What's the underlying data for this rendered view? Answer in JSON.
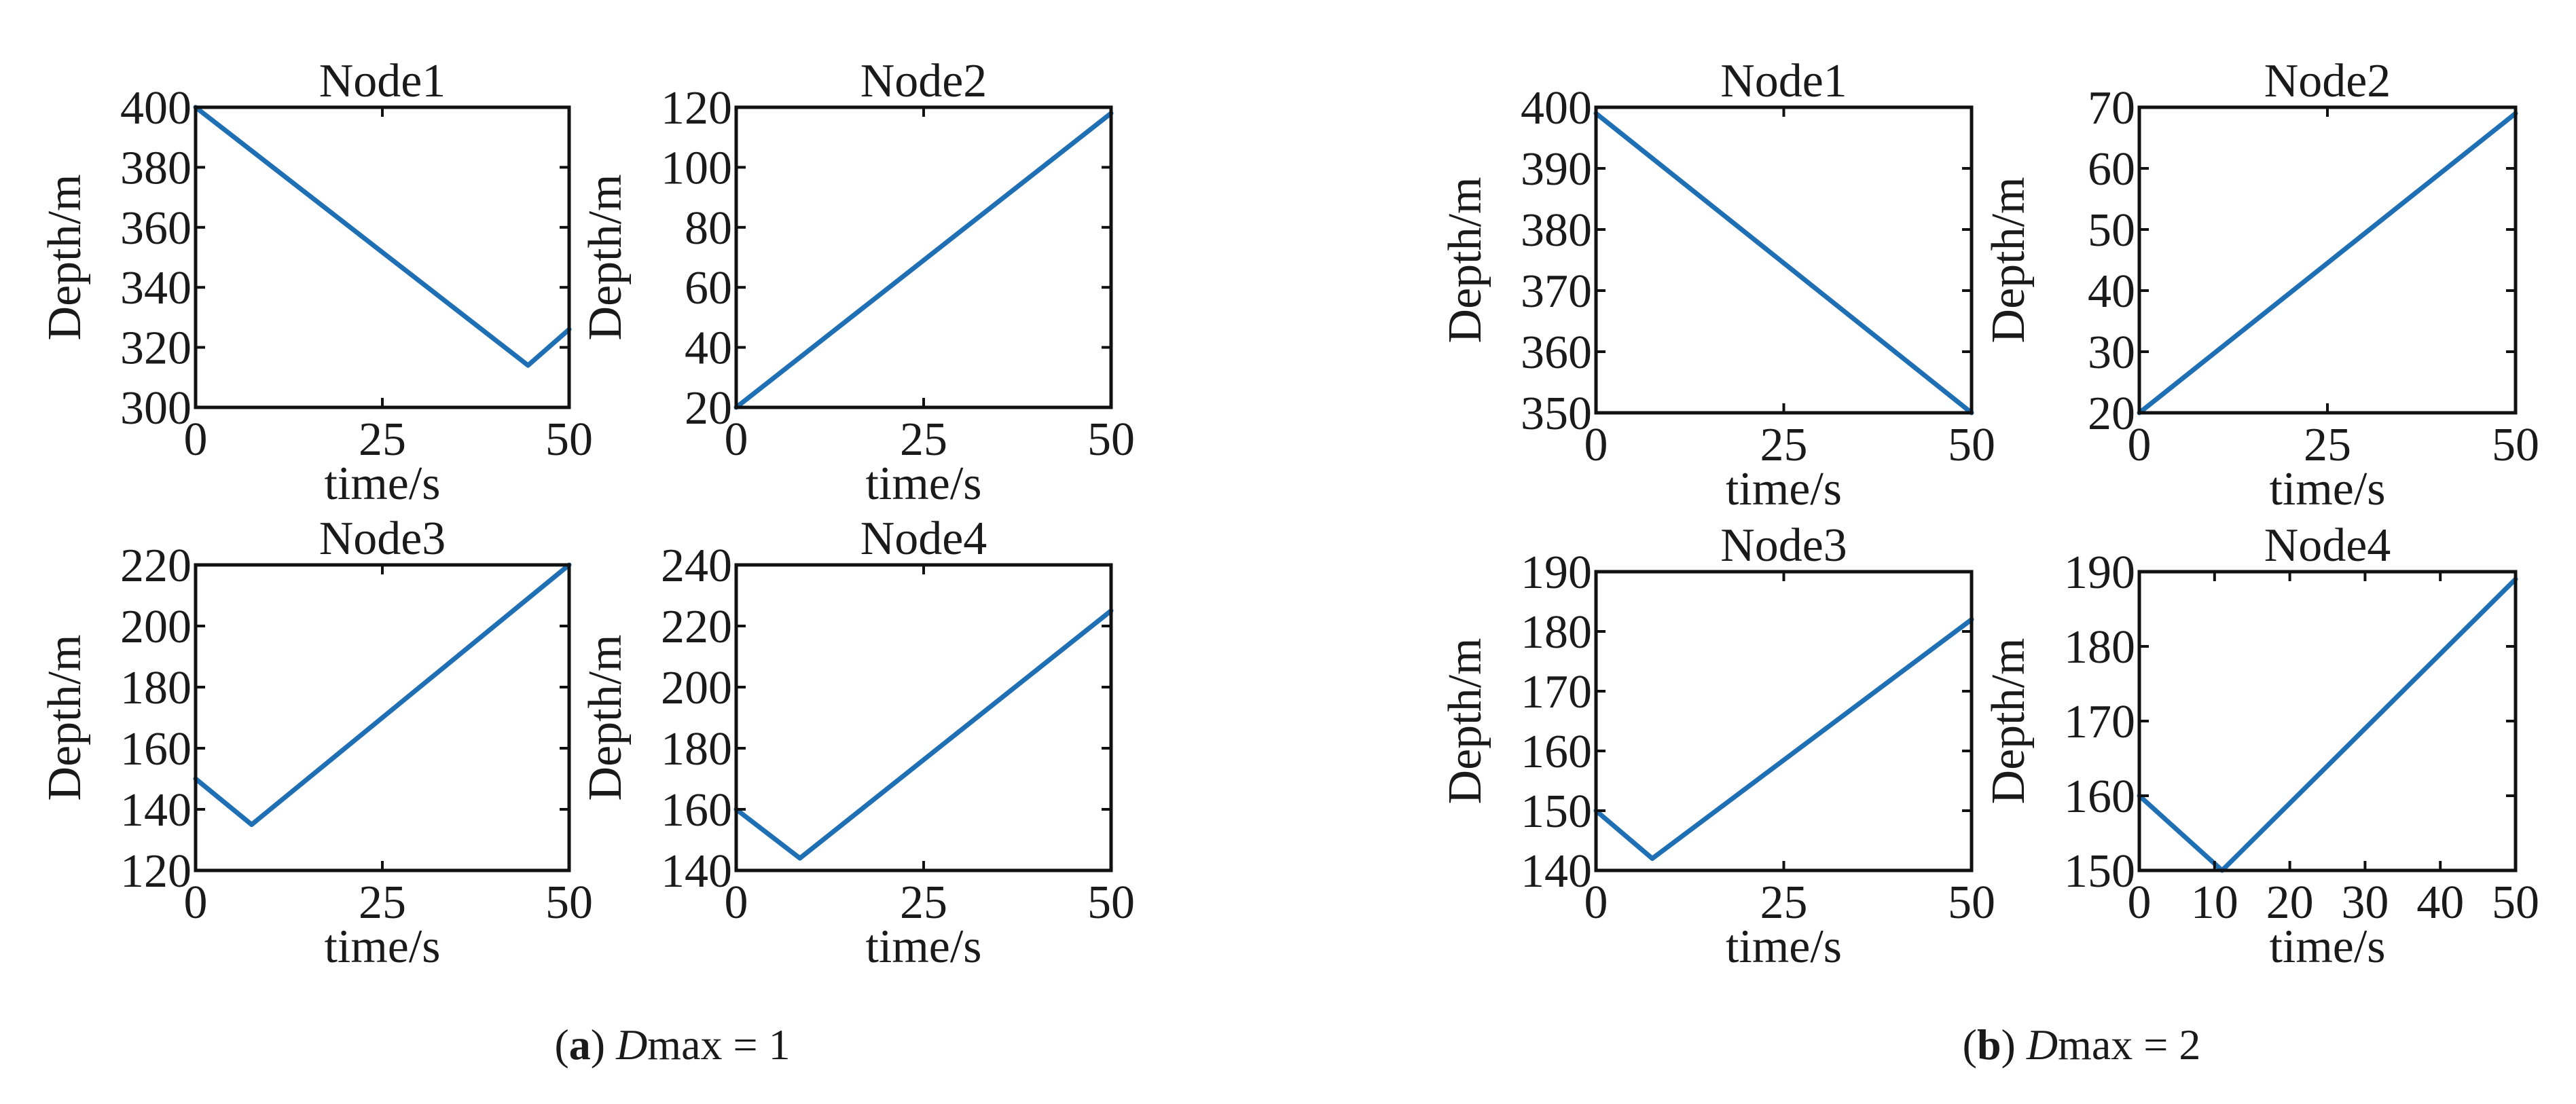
{
  "figure": {
    "captions": [
      {
        "letter": "a",
        "var": "D",
        "rest": "max = 1"
      },
      {
        "letter": "b",
        "var": "D",
        "rest": "max = 2"
      }
    ]
  },
  "chart_data": [
    {
      "type": "line",
      "panel": "a",
      "title": "Node1",
      "xlabel": "time/s",
      "ylabel": "Depth/m",
      "xlim": [
        0,
        50
      ],
      "ylim": [
        300,
        400
      ],
      "xticks": [
        0,
        25,
        50
      ],
      "yticks": [
        300,
        320,
        340,
        360,
        380,
        400
      ],
      "grid": false,
      "x": [
        0,
        44.5,
        50
      ],
      "y": [
        400,
        314,
        326
      ],
      "color": "#1f6fb4"
    },
    {
      "type": "line",
      "panel": "a",
      "title": "Node2",
      "xlabel": "time/s",
      "ylabel": "Depth/m",
      "xlim": [
        0,
        50
      ],
      "ylim": [
        20,
        120
      ],
      "xticks": [
        0,
        25,
        50
      ],
      "yticks": [
        20,
        40,
        60,
        80,
        100,
        120
      ],
      "grid": false,
      "x": [
        0,
        50
      ],
      "y": [
        20,
        118
      ],
      "color": "#1f6fb4"
    },
    {
      "type": "line",
      "panel": "a",
      "title": "Node3",
      "xlabel": "time/s",
      "ylabel": "Depth/m",
      "xlim": [
        0,
        50
      ],
      "ylim": [
        120,
        220
      ],
      "xticks": [
        0,
        25,
        50
      ],
      "yticks": [
        120,
        140,
        160,
        180,
        200,
        220
      ],
      "grid": false,
      "x": [
        0,
        7.5,
        50
      ],
      "y": [
        150,
        135,
        220
      ],
      "color": "#1f6fb4"
    },
    {
      "type": "line",
      "panel": "a",
      "title": "Node4",
      "xlabel": "time/s",
      "ylabel": "Depth/m",
      "xlim": [
        0,
        50
      ],
      "ylim": [
        140,
        240
      ],
      "xticks": [
        0,
        25,
        50
      ],
      "yticks": [
        140,
        160,
        180,
        200,
        220,
        240
      ],
      "grid": false,
      "x": [
        0,
        8.5,
        50
      ],
      "y": [
        160,
        144,
        225
      ],
      "color": "#1f6fb4"
    },
    {
      "type": "line",
      "panel": "b",
      "title": "Node1",
      "xlabel": "time/s",
      "ylabel": "Depth/m",
      "xlim": [
        0,
        50
      ],
      "ylim": [
        350,
        400
      ],
      "xticks": [
        0,
        25,
        50
      ],
      "yticks": [
        350,
        360,
        370,
        380,
        390,
        400
      ],
      "grid": false,
      "x": [
        0,
        50
      ],
      "y": [
        399,
        350
      ],
      "color": "#1f6fb4"
    },
    {
      "type": "line",
      "panel": "b",
      "title": "Node2",
      "xlabel": "time/s",
      "ylabel": "Depth/m",
      "xlim": [
        0,
        50
      ],
      "ylim": [
        20,
        70
      ],
      "xticks": [
        0,
        25,
        50
      ],
      "yticks": [
        20,
        30,
        40,
        50,
        60,
        70
      ],
      "grid": false,
      "x": [
        0,
        50
      ],
      "y": [
        20,
        69
      ],
      "color": "#1f6fb4"
    },
    {
      "type": "line",
      "panel": "b",
      "title": "Node3",
      "xlabel": "time/s",
      "ylabel": "Depth/m",
      "xlim": [
        0,
        50
      ],
      "ylim": [
        140,
        190
      ],
      "xticks": [
        0,
        25,
        50
      ],
      "yticks": [
        140,
        150,
        160,
        170,
        180,
        190
      ],
      "grid": false,
      "x": [
        0,
        7.5,
        50
      ],
      "y": [
        150,
        142,
        182
      ],
      "color": "#1f6fb4"
    },
    {
      "type": "line",
      "panel": "b",
      "title": "Node4",
      "xlabel": "time/s",
      "ylabel": "Depth/m",
      "xlim": [
        0,
        50
      ],
      "ylim": [
        150,
        190
      ],
      "xticks": [
        0,
        10,
        20,
        30,
        40,
        50
      ],
      "yticks": [
        150,
        160,
        170,
        180,
        190
      ],
      "grid": false,
      "x": [
        0,
        11,
        50
      ],
      "y": [
        160,
        150,
        189
      ],
      "color": "#1f6fb4"
    }
  ]
}
